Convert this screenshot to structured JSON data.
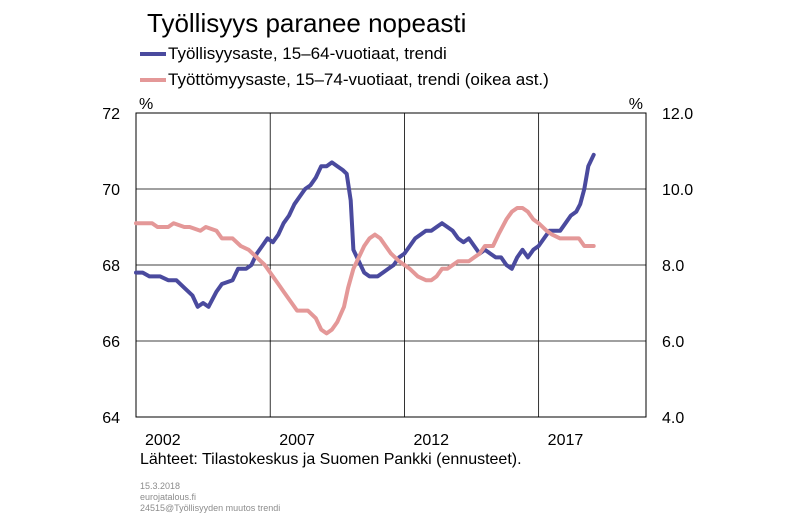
{
  "chart_data": {
    "type": "line",
    "title": "Työllisyys paranee nopeasti",
    "left_unit": "%",
    "right_unit": "%",
    "ylim_left": [
      64,
      72
    ],
    "ylim_right": [
      4.0,
      12.0
    ],
    "xlim": [
      2001,
      2020
    ],
    "left_ticks": [
      "72",
      "70",
      "68",
      "66",
      "64"
    ],
    "right_ticks": [
      "12.0",
      "10.0",
      "8.0",
      "6.0",
      "4.0"
    ],
    "x_ticks": [
      {
        "label": "2002",
        "value": 2002
      },
      {
        "label": "2007",
        "value": 2007
      },
      {
        "label": "2012",
        "value": 2012
      },
      {
        "label": "2017",
        "value": 2017
      }
    ],
    "vgrid": [
      2006,
      2011,
      2016
    ],
    "hgrid": [
      66,
      68,
      70
    ],
    "series": [
      {
        "name": "Työllisyysaste, 15–64-vuotiaat, trendi",
        "axis": "left",
        "color": "#4a4a9e",
        "points": [
          [
            2001.0,
            67.8
          ],
          [
            2001.25,
            67.8
          ],
          [
            2001.5,
            67.7
          ],
          [
            2001.9,
            67.7
          ],
          [
            2002.2,
            67.6
          ],
          [
            2002.5,
            67.6
          ],
          [
            2002.8,
            67.4
          ],
          [
            2003.1,
            67.2
          ],
          [
            2003.3,
            66.9
          ],
          [
            2003.5,
            67.0
          ],
          [
            2003.7,
            66.9
          ],
          [
            2004.0,
            67.3
          ],
          [
            2004.2,
            67.5
          ],
          [
            2004.6,
            67.6
          ],
          [
            2004.8,
            67.9
          ],
          [
            2005.1,
            67.9
          ],
          [
            2005.3,
            68.0
          ],
          [
            2005.5,
            68.3
          ],
          [
            2005.7,
            68.5
          ],
          [
            2005.9,
            68.7
          ],
          [
            2006.1,
            68.6
          ],
          [
            2006.3,
            68.8
          ],
          [
            2006.5,
            69.1
          ],
          [
            2006.7,
            69.3
          ],
          [
            2006.9,
            69.6
          ],
          [
            2007.1,
            69.8
          ],
          [
            2007.3,
            70.0
          ],
          [
            2007.5,
            70.1
          ],
          [
            2007.7,
            70.3
          ],
          [
            2007.9,
            70.6
          ],
          [
            2008.1,
            70.6
          ],
          [
            2008.3,
            70.7
          ],
          [
            2008.5,
            70.6
          ],
          [
            2008.7,
            70.5
          ],
          [
            2008.85,
            70.4
          ],
          [
            2009.0,
            69.7
          ],
          [
            2009.1,
            68.4
          ],
          [
            2009.3,
            68.1
          ],
          [
            2009.5,
            67.8
          ],
          [
            2009.7,
            67.7
          ],
          [
            2010.0,
            67.7
          ],
          [
            2010.2,
            67.8
          ],
          [
            2010.4,
            67.9
          ],
          [
            2010.6,
            68.0
          ],
          [
            2010.8,
            68.2
          ],
          [
            2011.0,
            68.3
          ],
          [
            2011.2,
            68.5
          ],
          [
            2011.4,
            68.7
          ],
          [
            2011.6,
            68.8
          ],
          [
            2011.8,
            68.9
          ],
          [
            2012.0,
            68.9
          ],
          [
            2012.2,
            69.0
          ],
          [
            2012.4,
            69.1
          ],
          [
            2012.6,
            69.0
          ],
          [
            2012.8,
            68.9
          ],
          [
            2013.0,
            68.7
          ],
          [
            2013.2,
            68.6
          ],
          [
            2013.4,
            68.7
          ],
          [
            2013.6,
            68.5
          ],
          [
            2013.8,
            68.3
          ],
          [
            2014.0,
            68.4
          ],
          [
            2014.2,
            68.3
          ],
          [
            2014.4,
            68.2
          ],
          [
            2014.6,
            68.2
          ],
          [
            2014.8,
            68.0
          ],
          [
            2015.0,
            67.9
          ],
          [
            2015.2,
            68.2
          ],
          [
            2015.4,
            68.4
          ],
          [
            2015.6,
            68.2
          ],
          [
            2015.8,
            68.4
          ],
          [
            2016.0,
            68.5
          ],
          [
            2016.2,
            68.7
          ],
          [
            2016.4,
            68.9
          ],
          [
            2016.6,
            68.9
          ],
          [
            2016.8,
            68.9
          ],
          [
            2017.0,
            69.1
          ],
          [
            2017.2,
            69.3
          ],
          [
            2017.4,
            69.4
          ],
          [
            2017.55,
            69.6
          ],
          [
            2017.7,
            70.0
          ],
          [
            2017.85,
            70.6
          ],
          [
            2018.05,
            70.9
          ]
        ]
      },
      {
        "name": "Työttömyysaste, 15–74-vuotiaat, trendi (oikea ast.)",
        "axis": "right",
        "color": "#e49898",
        "points": [
          [
            2001.0,
            9.1
          ],
          [
            2001.6,
            9.1
          ],
          [
            2001.8,
            9.0
          ],
          [
            2002.2,
            9.0
          ],
          [
            2002.4,
            9.1
          ],
          [
            2002.8,
            9.0
          ],
          [
            2003.0,
            9.0
          ],
          [
            2003.4,
            8.9
          ],
          [
            2003.6,
            9.0
          ],
          [
            2004.0,
            8.9
          ],
          [
            2004.2,
            8.7
          ],
          [
            2004.6,
            8.7
          ],
          [
            2004.9,
            8.5
          ],
          [
            2005.2,
            8.4
          ],
          [
            2005.5,
            8.2
          ],
          [
            2005.8,
            8.0
          ],
          [
            2006.0,
            7.8
          ],
          [
            2006.3,
            7.5
          ],
          [
            2006.5,
            7.3
          ],
          [
            2006.8,
            7.0
          ],
          [
            2007.0,
            6.8
          ],
          [
            2007.4,
            6.8
          ],
          [
            2007.7,
            6.6
          ],
          [
            2007.9,
            6.3
          ],
          [
            2008.1,
            6.2
          ],
          [
            2008.3,
            6.3
          ],
          [
            2008.5,
            6.5
          ],
          [
            2008.75,
            6.9
          ],
          [
            2008.9,
            7.4
          ],
          [
            2009.1,
            7.9
          ],
          [
            2009.3,
            8.2
          ],
          [
            2009.5,
            8.5
          ],
          [
            2009.7,
            8.7
          ],
          [
            2009.9,
            8.8
          ],
          [
            2010.1,
            8.7
          ],
          [
            2010.3,
            8.5
          ],
          [
            2010.5,
            8.3
          ],
          [
            2010.8,
            8.1
          ],
          [
            2011.0,
            8.0
          ],
          [
            2011.2,
            7.9
          ],
          [
            2011.5,
            7.7
          ],
          [
            2011.8,
            7.6
          ],
          [
            2012.0,
            7.6
          ],
          [
            2012.2,
            7.7
          ],
          [
            2012.4,
            7.9
          ],
          [
            2012.6,
            7.9
          ],
          [
            2013.0,
            8.1
          ],
          [
            2013.4,
            8.1
          ],
          [
            2013.6,
            8.2
          ],
          [
            2013.8,
            8.3
          ],
          [
            2014.0,
            8.5
          ],
          [
            2014.3,
            8.5
          ],
          [
            2014.5,
            8.8
          ],
          [
            2014.8,
            9.2
          ],
          [
            2015.0,
            9.4
          ],
          [
            2015.2,
            9.5
          ],
          [
            2015.4,
            9.5
          ],
          [
            2015.6,
            9.4
          ],
          [
            2015.8,
            9.2
          ],
          [
            2016.0,
            9.1
          ],
          [
            2016.3,
            8.9
          ],
          [
            2016.5,
            8.8
          ],
          [
            2016.8,
            8.7
          ],
          [
            2017.2,
            8.7
          ],
          [
            2017.5,
            8.7
          ],
          [
            2017.7,
            8.5
          ],
          [
            2018.05,
            8.5
          ]
        ]
      }
    ]
  },
  "source_text": "Lähteet:  Tilastokeskus ja Suomen Pankki (ennusteet).",
  "footer": {
    "date": "15.3.2018",
    "site": "eurojatalous.fi",
    "file": "24515@Työllisyyden  muutos trendi"
  }
}
